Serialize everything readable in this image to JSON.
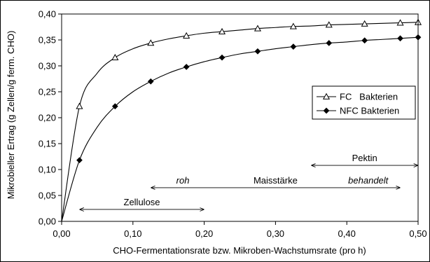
{
  "chart_data": {
    "type": "line",
    "xlabel": "CHO-Fermentationsrate bzw. Mikroben-Wachstumsrate (pro h)",
    "ylabel": "Mikrobieller Ertrag (g Zellen/g ferm. CHO)",
    "xlim": [
      0,
      0.5
    ],
    "ylim": [
      0,
      0.4
    ],
    "x_ticks": [
      "0,00",
      "0,10",
      "0,20",
      "0,30",
      "0,40",
      "0,50"
    ],
    "y_ticks": [
      "0,00",
      "0,05",
      "0,10",
      "0,15",
      "0,20",
      "0,25",
      "0,30",
      "0,35",
      "0,40"
    ],
    "grid": false,
    "legend_position": "right",
    "series": [
      {
        "name": "FC   Bakterien",
        "marker": "triangle-open",
        "x": [
          0,
          0.025,
          0.05,
          0.075,
          0.1,
          0.125,
          0.15,
          0.175,
          0.2,
          0.225,
          0.25,
          0.275,
          0.3,
          0.325,
          0.35,
          0.375,
          0.4,
          0.425,
          0.45,
          0.475,
          0.5
        ],
        "y": [
          0,
          0.222,
          0.286,
          0.316,
          0.333,
          0.344,
          0.352,
          0.358,
          0.363,
          0.366,
          0.369,
          0.372,
          0.374,
          0.376,
          0.377,
          0.379,
          0.38,
          0.381,
          0.382,
          0.383,
          0.384
        ]
      },
      {
        "name": "NFC Bakterien",
        "marker": "diamond-filled",
        "x": [
          0,
          0.025,
          0.05,
          0.075,
          0.1,
          0.125,
          0.15,
          0.175,
          0.2,
          0.225,
          0.25,
          0.275,
          0.3,
          0.325,
          0.35,
          0.375,
          0.4,
          0.425,
          0.45,
          0.475,
          0.5
        ],
        "y": [
          0,
          0.118,
          0.182,
          0.222,
          0.25,
          0.27,
          0.286,
          0.298,
          0.308,
          0.316,
          0.323,
          0.328,
          0.333,
          0.337,
          0.341,
          0.344,
          0.346,
          0.349,
          0.351,
          0.353,
          0.355
        ]
      }
    ],
    "annotations": [
      {
        "id": "zellulose",
        "label": "Zellulose",
        "x_start": 0.025,
        "x_end": 0.2,
        "y": 0.023
      },
      {
        "id": "maisstaerke",
        "label": "Maisstärke",
        "x_start": 0.125,
        "x_end": 0.475,
        "y": 0.065,
        "sub_labels": [
          {
            "text": "roh",
            "x": 0.17
          },
          {
            "text": "behandelt",
            "x": 0.43
          }
        ]
      },
      {
        "id": "pektin",
        "label": "Pektin",
        "x_start": 0.35,
        "x_end": 0.5,
        "y": 0.108
      }
    ]
  }
}
